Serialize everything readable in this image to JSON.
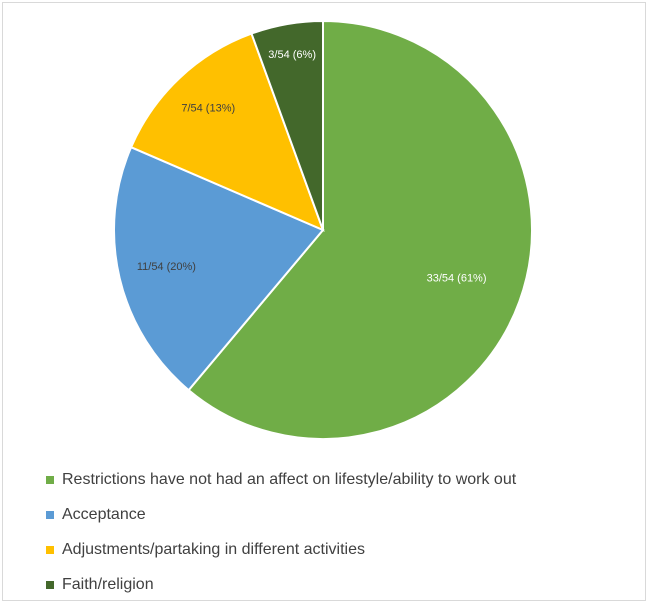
{
  "chart_data": {
    "type": "pie",
    "slices": [
      {
        "label": "Restrictions have not had an affect on lifestyle/ability to work out",
        "value": 33,
        "data_label": "33/54 (61%)",
        "color": "#70ad47",
        "label_color": "#ffffff"
      },
      {
        "label": "Acceptance",
        "value": 11,
        "data_label": "11/54 (20%)",
        "color": "#5b9bd5",
        "label_color": "#404040"
      },
      {
        "label": "Adjustments/partaking in different activities",
        "value": 7,
        "data_label": "7/54 (13%)",
        "color": "#ffc000",
        "label_color": "#404040"
      },
      {
        "label": "Faith/religion",
        "value": 3,
        "data_label": "3/54 (6%)",
        "color": "#43682b",
        "label_color": "#ffffff"
      }
    ],
    "total": 54,
    "start_angle": "12 o'clock, clockwise",
    "legend_position": "bottom"
  }
}
